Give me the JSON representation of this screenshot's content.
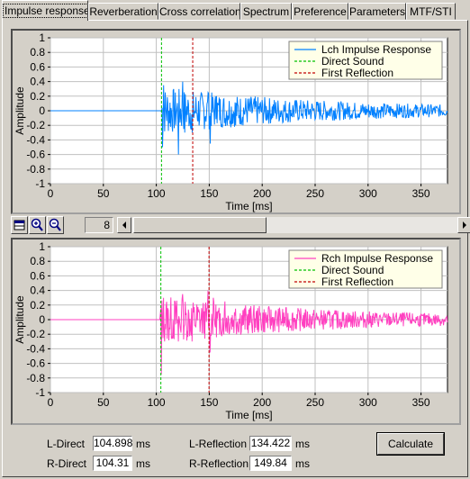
{
  "tabs": [
    {
      "label": "Impulse response",
      "active": true
    },
    {
      "label": "Reverberation"
    },
    {
      "label": "Cross correlation"
    },
    {
      "label": "Spectrum"
    },
    {
      "label": "Preference"
    },
    {
      "label": "Parameters"
    },
    {
      "label": "MTF/STI"
    }
  ],
  "toolbar": {
    "zoom_value": "8"
  },
  "chart_data": [
    {
      "type": "line",
      "id": "lch",
      "xlabel": "Time [ms]",
      "ylabel": "Amplitude",
      "xlim": [
        0,
        375
      ],
      "ylim": [
        -1,
        1
      ],
      "xticks": [
        "0",
        "50",
        "100",
        "150",
        "200",
        "250",
        "300",
        "350"
      ],
      "yticks": [
        "1",
        "0.8",
        "0.6",
        "0.4",
        "0.2",
        "0",
        "-0.2",
        "-0.4",
        "-0.6",
        "-0.8",
        "-1"
      ],
      "grid": true,
      "legend_position": "top-right",
      "series": [
        {
          "name": "Lch Impulse Response",
          "color": "#0080ff",
          "style": "solid"
        },
        {
          "name": "Direct Sound",
          "color": "#00c000",
          "style": "dashed",
          "x": 104.9
        },
        {
          "name": "First Reflection",
          "color": "#c00000",
          "style": "dashed",
          "x": 134.4
        }
      ],
      "markers": [
        {
          "x": 104.9,
          "color": "#00c000"
        },
        {
          "x": 134.4,
          "color": "#c00000"
        }
      ]
    },
    {
      "type": "line",
      "id": "rch",
      "xlabel": "Time [ms]",
      "ylabel": "Amplitude",
      "xlim": [
        0,
        375
      ],
      "ylim": [
        -1,
        1
      ],
      "xticks": [
        "0",
        "50",
        "100",
        "150",
        "200",
        "250",
        "300",
        "350"
      ],
      "yticks": [
        "1",
        "0.8",
        "0.6",
        "0.4",
        "0.2",
        "0",
        "-0.2",
        "-0.4",
        "-0.6",
        "-0.8",
        "-1"
      ],
      "grid": true,
      "legend_position": "top-right",
      "series": [
        {
          "name": "Rch Impulse Response",
          "color": "#ff40c0",
          "style": "solid"
        },
        {
          "name": "Direct Sound",
          "color": "#00c000",
          "style": "dashed",
          "x": 104.3
        },
        {
          "name": "First Reflection",
          "color": "#c00000",
          "style": "dashed",
          "x": 149.8
        }
      ],
      "markers": [
        {
          "x": 104.3,
          "color": "#00c000"
        },
        {
          "x": 149.8,
          "color": "#c00000"
        }
      ]
    }
  ],
  "results": {
    "l_direct_label": "L-Direct",
    "l_direct_value": "104.898",
    "r_direct_label": "R-Direct",
    "r_direct_value": "104.31",
    "l_reflection_label": "L-Reflection",
    "l_reflection_value": "134.422",
    "r_reflection_label": "R-Reflection",
    "r_reflection_value": "149.84",
    "unit": "ms",
    "calculate_label": "Calculate"
  }
}
